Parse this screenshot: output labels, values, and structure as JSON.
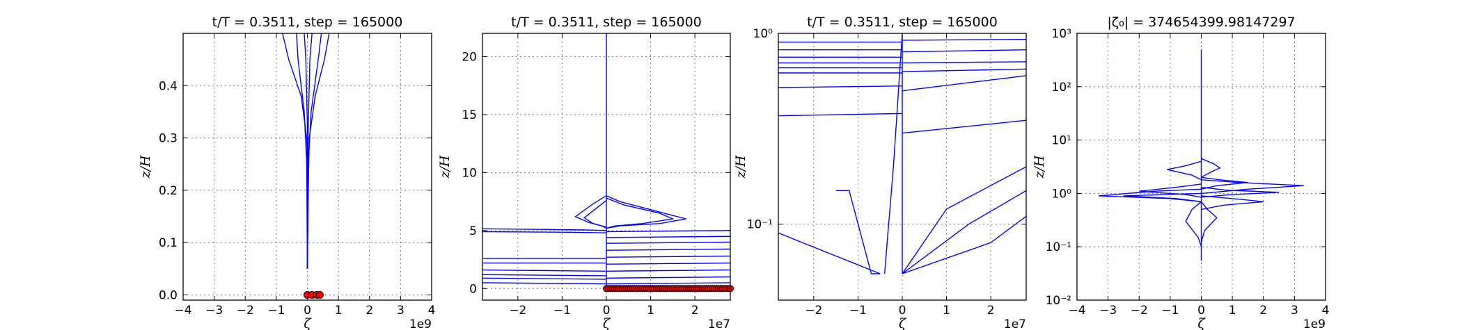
{
  "chart_data": [
    {
      "type": "line",
      "title": "t/T = 0.3511, step = 165000",
      "xlabel": "ζ",
      "ylabel": "z/H",
      "x_offset_label": "1e9",
      "xlim": [
        -4,
        4
      ],
      "ylim": [
        -0.01,
        0.5
      ],
      "yscale": "linear",
      "x_ticks": [
        -4,
        -3,
        -2,
        -1,
        0,
        1,
        2,
        3,
        4
      ],
      "y_ticks": [
        0.0,
        0.1,
        0.2,
        0.3,
        0.4
      ],
      "y_tick_labels": [
        "0.0",
        "0.1",
        "0.2",
        "0.3",
        "0.4"
      ],
      "grid": true,
      "series": [
        {
          "x": [
            0.0,
            0.02,
            -0.02,
            -0.2,
            -0.6,
            -0.8
          ],
          "y": [
            0.05,
            0.2,
            0.3,
            0.38,
            0.45,
            0.5
          ]
        },
        {
          "x": [
            0.0,
            0.03,
            0.06,
            0.25,
            0.55,
            0.7
          ],
          "y": [
            0.05,
            0.2,
            0.3,
            0.38,
            0.45,
            0.5
          ]
        },
        {
          "x": [
            0.0,
            -0.02,
            -0.1,
            -0.3,
            -0.35
          ],
          "y": [
            0.05,
            0.25,
            0.35,
            0.45,
            0.5
          ]
        },
        {
          "x": [
            0.0,
            0.03,
            0.12,
            0.35,
            0.45
          ],
          "y": [
            0.05,
            0.25,
            0.35,
            0.45,
            0.5
          ]
        },
        {
          "x": [
            0.0,
            0.01,
            -0.05,
            -0.1
          ],
          "y": [
            0.05,
            0.3,
            0.45,
            0.5
          ]
        },
        {
          "x": [
            0.0,
            0.02,
            0.08,
            0.15
          ],
          "y": [
            0.05,
            0.3,
            0.45,
            0.5
          ]
        }
      ],
      "markers": {
        "x": [
          0.0,
          0.15,
          0.3,
          0.4
        ],
        "y": [
          0.0,
          0.0,
          0.0,
          0.0
        ],
        "color": "#ff0000"
      }
    },
    {
      "type": "line",
      "title": "t/T = 0.3511, step = 165000",
      "xlabel": "ζ",
      "ylabel": "z/H",
      "x_offset_label": "1e7",
      "xlim": [
        -2.8,
        2.8
      ],
      "ylim": [
        -1.0,
        22.0
      ],
      "yscale": "linear",
      "x_ticks": [
        -2,
        -1,
        0,
        1,
        2
      ],
      "y_ticks": [
        0,
        5,
        10,
        15,
        20
      ],
      "y_tick_labels": [
        "0",
        "5",
        "10",
        "15",
        "20"
      ],
      "grid": true,
      "series": [
        {
          "x": [
            0.0,
            0.0,
            0.0
          ],
          "y": [
            0.0,
            8.0,
            22.0
          ]
        },
        {
          "x": [
            0.0,
            -0.5,
            -1.5,
            -2.8
          ],
          "y": [
            5.0,
            5.05,
            5.1,
            5.15
          ]
        },
        {
          "x": [
            0.0,
            -0.8,
            -2.8
          ],
          "y": [
            4.8,
            4.85,
            4.9
          ]
        },
        {
          "x": [
            0.0,
            -2.8
          ],
          "y": [
            2.6,
            2.6
          ]
        },
        {
          "x": [
            0.0,
            -2.8
          ],
          "y": [
            2.2,
            2.2
          ]
        },
        {
          "x": [
            0.0,
            -2.8
          ],
          "y": [
            1.5,
            1.6
          ]
        },
        {
          "x": [
            0.0,
            -2.8
          ],
          "y": [
            1.1,
            1.2
          ]
        },
        {
          "x": [
            0.0,
            -2.8
          ],
          "y": [
            0.8,
            0.9
          ]
        },
        {
          "x": [
            0.0,
            -2.8
          ],
          "y": [
            0.4,
            0.5
          ]
        },
        {
          "x": [
            0.0,
            2.8
          ],
          "y": [
            4.9,
            5.0
          ]
        },
        {
          "x": [
            0.0,
            2.8
          ],
          "y": [
            4.4,
            4.5
          ]
        },
        {
          "x": [
            0.0,
            2.8
          ],
          "y": [
            3.9,
            4.0
          ]
        },
        {
          "x": [
            0.0,
            2.8
          ],
          "y": [
            3.3,
            3.4
          ]
        },
        {
          "x": [
            0.0,
            2.8
          ],
          "y": [
            2.7,
            2.8
          ]
        },
        {
          "x": [
            0.0,
            2.8
          ],
          "y": [
            2.1,
            2.2
          ]
        },
        {
          "x": [
            0.0,
            2.8
          ],
          "y": [
            1.5,
            1.6
          ]
        },
        {
          "x": [
            0.0,
            2.8
          ],
          "y": [
            0.9,
            1.0
          ]
        },
        {
          "x": [
            0.0,
            2.8
          ],
          "y": [
            0.4,
            0.5
          ]
        },
        {
          "x": [
            0.0,
            0.3,
            1.0,
            1.8,
            1.2,
            0.3,
            0.0
          ],
          "y": [
            8.0,
            7.5,
            6.8,
            6.0,
            5.6,
            5.4,
            5.2
          ]
        },
        {
          "x": [
            0.0,
            0.4,
            1.2,
            1.5,
            0.8,
            0.2,
            0.0
          ],
          "y": [
            7.8,
            7.2,
            6.5,
            6.0,
            5.6,
            5.4,
            5.2
          ]
        },
        {
          "x": [
            0.0,
            -0.3,
            -0.7,
            -0.4,
            -0.1,
            0.0
          ],
          "y": [
            8.0,
            7.3,
            6.2,
            5.7,
            5.4,
            5.2
          ]
        },
        {
          "x": [
            0.0,
            -0.2,
            -0.5,
            -0.3,
            0.0
          ],
          "y": [
            7.6,
            7.0,
            6.1,
            5.6,
            5.3
          ]
        }
      ],
      "markers": {
        "x_start": 0.0,
        "x_end": 2.8,
        "y": 0.0,
        "color": "#ff0000"
      }
    },
    {
      "type": "line",
      "title": "t/T = 0.3511, step = 165000",
      "xlabel": "ζ",
      "ylabel": "z/H",
      "x_offset_label": "1e7",
      "xlim": [
        -2.8,
        2.8
      ],
      "ylim": [
        0.04,
        1.0
      ],
      "yscale": "log",
      "x_ticks": [
        -2,
        -1,
        0,
        1,
        2
      ],
      "y_ticks": [
        0.1,
        1.0
      ],
      "y_tick_labels": [
        "10⁻¹",
        "10⁰"
      ],
      "grid": true,
      "series": [
        {
          "x": [
            -2.8,
            -0.5
          ],
          "y": [
            0.09,
            0.055
          ]
        },
        {
          "x": [
            -1.5,
            -1.2,
            -0.7,
            -0.5
          ],
          "y": [
            0.15,
            0.15,
            0.055,
            0.055
          ]
        },
        {
          "x": [
            -0.4,
            -0.2,
            0.0
          ],
          "y": [
            0.055,
            0.2,
            1.0
          ]
        },
        {
          "x": [
            0.0,
            0.0
          ],
          "y": [
            0.055,
            1.0
          ]
        },
        {
          "x": [
            0.0,
            1.0,
            2.8
          ],
          "y": [
            0.055,
            0.12,
            0.2
          ]
        },
        {
          "x": [
            0.0,
            1.5,
            2.8
          ],
          "y": [
            0.055,
            0.1,
            0.15
          ]
        },
        {
          "x": [
            0.0,
            2.0,
            2.8
          ],
          "y": [
            0.055,
            0.08,
            0.11
          ]
        },
        {
          "x": [
            0.0,
            2.8
          ],
          "y": [
            0.3,
            0.35
          ]
        },
        {
          "x": [
            0.0,
            2.8
          ],
          "y": [
            0.5,
            0.6
          ]
        },
        {
          "x": [
            -2.8,
            0.0
          ],
          "y": [
            0.37,
            0.38
          ]
        },
        {
          "x": [
            -2.8,
            0.0
          ],
          "y": [
            0.52,
            0.53
          ]
        },
        {
          "x": [
            -2.8,
            0.0
          ],
          "y": [
            0.62,
            0.62
          ]
        },
        {
          "x": [
            -2.8,
            0.0
          ],
          "y": [
            0.66,
            0.66
          ]
        },
        {
          "x": [
            -2.8,
            0.0
          ],
          "y": [
            0.7,
            0.7
          ]
        },
        {
          "x": [
            -2.8,
            0.0
          ],
          "y": [
            0.75,
            0.75
          ]
        },
        {
          "x": [
            -2.8,
            0.0
          ],
          "y": [
            0.82,
            0.82
          ]
        },
        {
          "x": [
            -2.8,
            0.0
          ],
          "y": [
            0.9,
            0.9
          ]
        },
        {
          "x": [
            0.0,
            2.8
          ],
          "y": [
            0.63,
            0.65
          ]
        },
        {
          "x": [
            0.0,
            2.8
          ],
          "y": [
            0.7,
            0.71
          ]
        },
        {
          "x": [
            0.0,
            2.8
          ],
          "y": [
            0.8,
            0.82
          ]
        },
        {
          "x": [
            0.0,
            2.8
          ],
          "y": [
            0.92,
            0.93
          ]
        }
      ]
    },
    {
      "type": "line",
      "title": "|ζ₀| = 374654399.98147297",
      "xlabel": "ζ",
      "ylabel": "z/H",
      "x_offset_label": "1e9",
      "xlim": [
        -4,
        4
      ],
      "ylim": [
        0.01,
        1000
      ],
      "yscale": "log",
      "x_ticks": [
        -4,
        -3,
        -2,
        -1,
        0,
        1,
        2,
        3,
        4
      ],
      "y_ticks": [
        0.01,
        0.1,
        1,
        10,
        100,
        1000
      ],
      "y_tick_labels": [
        "10⁻²",
        "10⁻¹",
        "10⁰",
        "10¹",
        "10²",
        "10³"
      ],
      "grid": true,
      "series": [
        {
          "x": [
            0.0,
            0.0,
            0.0
          ],
          "y": [
            0.055,
            1.0,
            500.0
          ]
        },
        {
          "x": [
            0.0,
            -1.5,
            -3.3,
            -1.0,
            0.0
          ],
          "y": [
            1.2,
            1.1,
            0.9,
            0.8,
            0.7
          ]
        },
        {
          "x": [
            0.0,
            1.2,
            3.3,
            1.5,
            0.0
          ],
          "y": [
            1.8,
            1.6,
            1.4,
            1.2,
            1.0
          ]
        },
        {
          "x": [
            0.0,
            -0.8,
            -2.0,
            -0.5,
            0.0
          ],
          "y": [
            1.5,
            1.3,
            1.1,
            0.95,
            0.85
          ]
        },
        {
          "x": [
            0.0,
            0.8,
            2.5,
            1.0,
            0.0
          ],
          "y": [
            1.3,
            1.15,
            1.05,
            0.95,
            0.85
          ]
        },
        {
          "x": [
            0.0,
            -0.5,
            -1.1,
            -0.3,
            0.0
          ],
          "y": [
            4.0,
            3.3,
            2.8,
            2.2,
            1.8
          ]
        },
        {
          "x": [
            0.0,
            0.4,
            0.6,
            0.3,
            0.0
          ],
          "y": [
            4.5,
            3.6,
            3.0,
            2.5,
            2.0
          ]
        },
        {
          "x": [
            0.0,
            0.6,
            1.5,
            0.5,
            0.0
          ],
          "y": [
            2.0,
            1.8,
            1.6,
            1.4,
            1.2
          ]
        },
        {
          "x": [
            0.0,
            -0.3,
            -0.5,
            -0.1,
            0.0
          ],
          "y": [
            0.7,
            0.5,
            0.3,
            0.15,
            0.1
          ]
        },
        {
          "x": [
            0.0,
            0.2,
            0.5,
            0.1,
            0.0
          ],
          "y": [
            0.7,
            0.5,
            0.35,
            0.2,
            0.12
          ]
        },
        {
          "x": [
            0.0,
            -1.2,
            -2.5,
            -0.8,
            0.0
          ],
          "y": [
            1.0,
            0.95,
            0.9,
            0.8,
            0.7
          ]
        },
        {
          "x": [
            0.0,
            1.0,
            2.0,
            0.7,
            0.0
          ],
          "y": [
            0.9,
            0.8,
            0.7,
            0.6,
            0.5
          ]
        }
      ]
    }
  ]
}
